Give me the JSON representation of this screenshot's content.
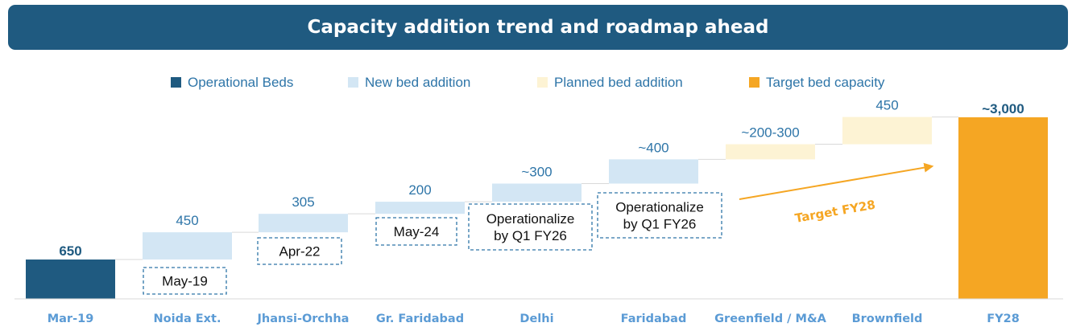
{
  "title": "Capacity addition trend and roadmap ahead",
  "colors": {
    "operational": "#1f5a80",
    "new": "#d3e6f4",
    "planned": "#fdf3d4",
    "target": "#f5a623"
  },
  "legend": [
    {
      "label": "Operational Beds",
      "color": "#1f5a80"
    },
    {
      "label": "New bed addition",
      "color": "#d3e6f4"
    },
    {
      "label": "Planned bed addition",
      "color": "#fdf3d4"
    },
    {
      "label": "Target bed capacity",
      "color": "#f5a623"
    }
  ],
  "chart_data": {
    "type": "bar",
    "subtype": "waterfall",
    "categories": [
      "Mar-19",
      "Noida Ext.",
      "Jhansi-Orchha",
      "Gr. Faridabad",
      "Delhi",
      "Faridabad",
      "Greenfield / M&A",
      "Brownfield",
      "FY28"
    ],
    "series": [
      {
        "name": "Operational Beds",
        "values": [
          650,
          null,
          null,
          null,
          null,
          null,
          null,
          null,
          null
        ]
      },
      {
        "name": "New bed addition",
        "values": [
          null,
          450,
          305,
          200,
          300,
          400,
          null,
          null,
          null
        ]
      },
      {
        "name": "Planned bed addition",
        "values": [
          null,
          null,
          null,
          null,
          null,
          null,
          250,
          450,
          null
        ]
      },
      {
        "name": "Target bed capacity",
        "values": [
          null,
          null,
          null,
          null,
          null,
          null,
          null,
          null,
          3000
        ]
      }
    ],
    "value_labels": [
      "650",
      "450",
      "305",
      "200",
      "~300",
      "~400",
      "~200-300",
      "450",
      "~3,000"
    ],
    "notes": [
      "",
      "May-19",
      "Apr-22",
      "May-24",
      "Operationalize\nby Q1 FY26",
      "Operationalize\nby Q1 FY26",
      "",
      "",
      ""
    ],
    "annotation": "Target FY28",
    "legend_position": "top",
    "grid": false
  }
}
